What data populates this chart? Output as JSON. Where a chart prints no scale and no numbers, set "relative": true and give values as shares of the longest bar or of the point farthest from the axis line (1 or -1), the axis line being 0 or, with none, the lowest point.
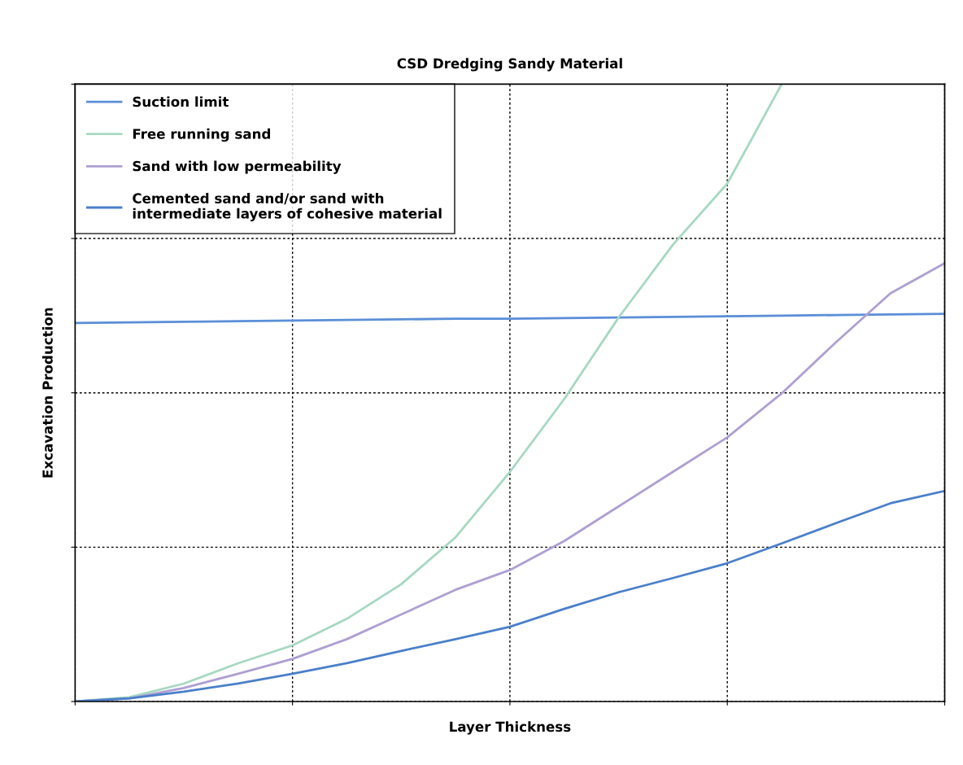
{
  "chart_data": {
    "type": "line",
    "title": "CSD Dredging Sandy Material",
    "xlabel": "Layer Thickness",
    "ylabel": "Excavation Production",
    "categories": [
      null,
      null,
      null,
      null,
      null,
      null,
      null,
      null,
      null,
      null,
      null,
      null,
      null,
      null,
      null,
      null,
      null
    ],
    "relative": true,
    "grid": true,
    "legend": "top left",
    "tick_labels": false,
    "line_style": "solid",
    "marker": "none",
    "series": [
      {
        "name": "Suction limit",
        "color": "#5a8ed8",
        "values": [
          0.613,
          0.614,
          0.615,
          0.616,
          0.617,
          0.618,
          0.619,
          0.62,
          0.62,
          0.621,
          0.622,
          0.623,
          0.624,
          0.625,
          0.626,
          0.627,
          0.628
        ]
      },
      {
        "name": "Free running sand",
        "color": "#a6d8c2",
        "values": [
          0,
          0.007,
          0.029,
          0.062,
          0.091,
          0.134,
          0.19,
          0.266,
          0.372,
          0.49,
          0.622,
          0.74,
          0.839,
          1,
          null,
          null,
          null
        ]
      },
      {
        "name": "Sand with low permeability",
        "color": "#ae9fd2",
        "values": [
          0,
          0.005,
          0.022,
          0.045,
          0.069,
          0.101,
          0.141,
          0.181,
          0.213,
          0.26,
          0.316,
          0.372,
          0.428,
          0.499,
          0.582,
          0.661,
          0.71
        ]
      },
      {
        "name": "Cemented sand and/or sand with\nintermediate layers of cohesive material",
        "color": "#4a7fca",
        "values": [
          0,
          0.005,
          0.016,
          0.029,
          0.045,
          0.062,
          0.082,
          0.101,
          0.121,
          0.15,
          0.177,
          0.2,
          0.224,
          0.256,
          0.289,
          0.321,
          0.341
        ]
      }
    ]
  }
}
